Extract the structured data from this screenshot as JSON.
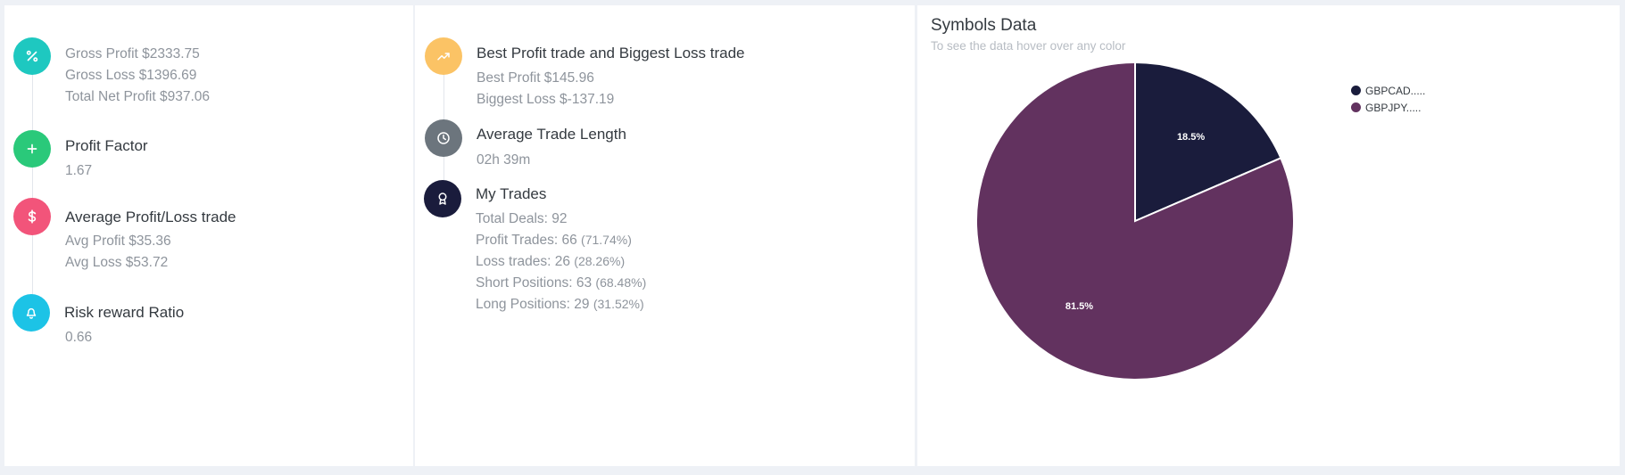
{
  "performance": {
    "gross": {
      "icon": "percent-icon",
      "color": "#1ec8c0",
      "lines": [
        "Gross Profit $2333.75",
        "Gross Loss $1396.69",
        "Total Net Profit $937.06"
      ]
    },
    "profit_factor": {
      "icon": "plus-icon",
      "color": "#2ac97a",
      "title": "Profit Factor",
      "value": "1.67"
    },
    "avg_profit_loss": {
      "icon": "dollar-icon",
      "color": "#f2547a",
      "title": "Average Profit/Loss trade",
      "avg_profit": "Avg Profit $35.36",
      "avg_loss": "Avg Loss $53.72"
    },
    "risk_reward": {
      "icon": "bell-icon",
      "color": "#1cc3e6",
      "title": "Risk reward Ratio",
      "value": "0.66"
    }
  },
  "trades": {
    "best_worst": {
      "icon": "trending-up-icon",
      "color": "#fbc365",
      "title": "Best Profit trade and Biggest Loss trade",
      "best": "Best Profit $145.96",
      "worst": "Biggest Loss $-137.19"
    },
    "avg_length": {
      "icon": "clock-icon",
      "color": "#6c757d",
      "title": "Average Trade Length",
      "value": "02h 39m"
    },
    "my_trades": {
      "icon": "award-icon",
      "color": "#1a1c3c",
      "title": "My Trades",
      "total_deals": "Total Deals: 92",
      "profit_trades": "Profit Trades: 66",
      "profit_trades_pct": "(71.74%)",
      "loss_trades": "Loss trades: 26",
      "loss_trades_pct": "(28.26%)",
      "short_positions": "Short Positions: 63",
      "short_positions_pct": "(68.48%)",
      "long_positions": "Long Positions: 29",
      "long_positions_pct": "(31.52%)"
    }
  },
  "symbols": {
    "title": "Symbols Data",
    "subtitle": "To see the data hover over any color"
  },
  "chart_data": {
    "type": "pie",
    "categories": [
      "GBPCAD.....",
      "GBPJPY....."
    ],
    "values": [
      18.5,
      81.5
    ],
    "labels": [
      "18.5%",
      "81.5%"
    ],
    "colors": [
      "#1a1c3c",
      "#62325f"
    ],
    "legend": "top-right"
  }
}
